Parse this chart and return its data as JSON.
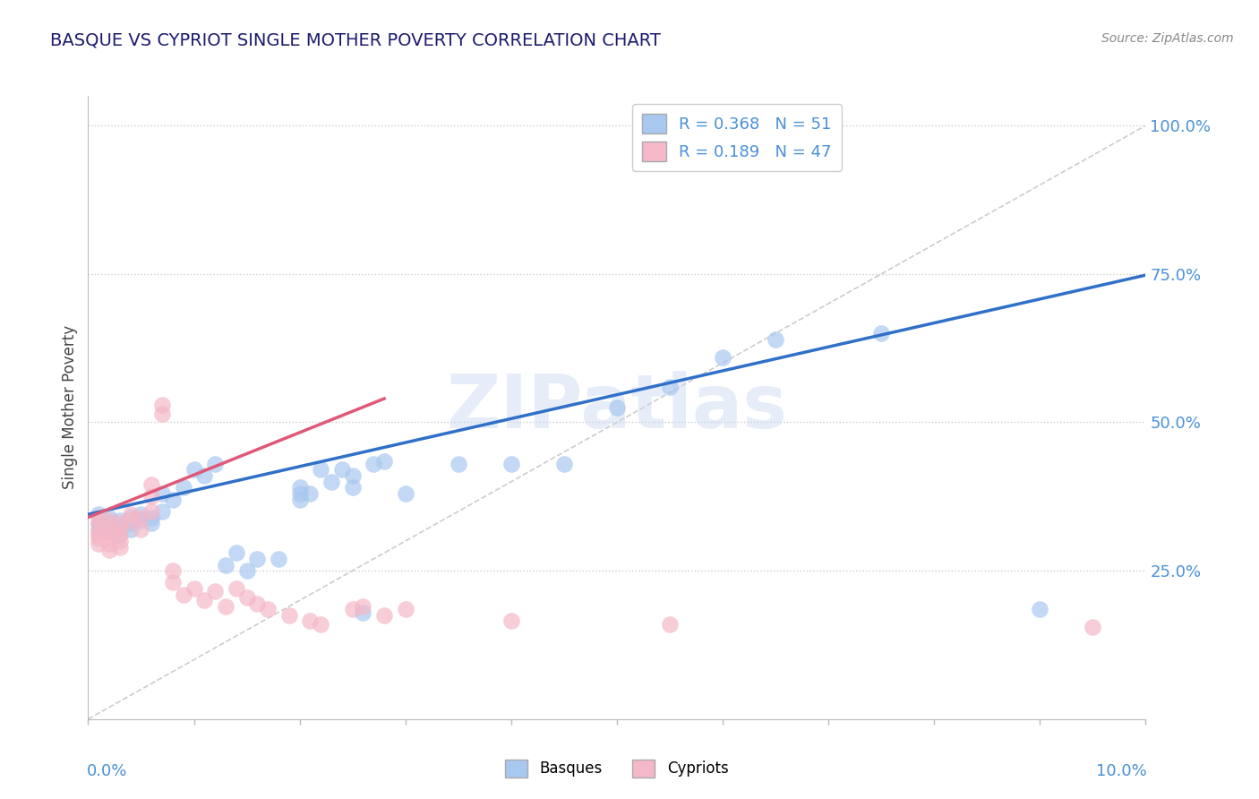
{
  "title": "BASQUE VS CYPRIOT SINGLE MOTHER POVERTY CORRELATION CHART",
  "source": "Source: ZipAtlas.com",
  "ylabel": "Single Mother Poverty",
  "legend_blue": {
    "R": "0.368",
    "N": "51"
  },
  "legend_pink": {
    "R": "0.189",
    "N": "47"
  },
  "legend_labels": [
    "Basques",
    "Cypriots"
  ],
  "watermark": "ZIPatlas",
  "blue_color": "#a8c8f0",
  "pink_color": "#f4b8c8",
  "blue_line_color": "#3070c8",
  "pink_line_color": "#e05878",
  "title_color": "#1a1a6e",
  "axis_label_color": "#4a90d9",
  "diagonal_color": "#c0c0c0",
  "blue_scatter": [
    [
      0.001,
      0.345
    ],
    [
      0.001,
      0.33
    ],
    [
      0.001,
      0.32
    ],
    [
      0.002,
      0.34
    ],
    [
      0.002,
      0.33
    ],
    [
      0.002,
      0.325
    ],
    [
      0.002,
      0.315
    ],
    [
      0.003,
      0.335
    ],
    [
      0.003,
      0.325
    ],
    [
      0.003,
      0.31
    ],
    [
      0.004,
      0.34
    ],
    [
      0.004,
      0.33
    ],
    [
      0.004,
      0.32
    ],
    [
      0.005,
      0.345
    ],
    [
      0.005,
      0.335
    ],
    [
      0.006,
      0.34
    ],
    [
      0.006,
      0.33
    ],
    [
      0.007,
      0.35
    ],
    [
      0.007,
      0.38
    ],
    [
      0.008,
      0.37
    ],
    [
      0.009,
      0.39
    ],
    [
      0.01,
      0.42
    ],
    [
      0.011,
      0.41
    ],
    [
      0.012,
      0.43
    ],
    [
      0.013,
      0.26
    ],
    [
      0.014,
      0.28
    ],
    [
      0.015,
      0.25
    ],
    [
      0.016,
      0.27
    ],
    [
      0.018,
      0.27
    ],
    [
      0.02,
      0.39
    ],
    [
      0.02,
      0.38
    ],
    [
      0.02,
      0.37
    ],
    [
      0.021,
      0.38
    ],
    [
      0.022,
      0.42
    ],
    [
      0.023,
      0.4
    ],
    [
      0.024,
      0.42
    ],
    [
      0.025,
      0.41
    ],
    [
      0.025,
      0.39
    ],
    [
      0.026,
      0.18
    ],
    [
      0.027,
      0.43
    ],
    [
      0.028,
      0.435
    ],
    [
      0.03,
      0.38
    ],
    [
      0.035,
      0.43
    ],
    [
      0.04,
      0.43
    ],
    [
      0.045,
      0.43
    ],
    [
      0.05,
      0.525
    ],
    [
      0.055,
      0.56
    ],
    [
      0.06,
      0.61
    ],
    [
      0.065,
      0.64
    ],
    [
      0.075,
      0.65
    ],
    [
      0.09,
      0.185
    ]
  ],
  "pink_scatter": [
    [
      0.001,
      0.34
    ],
    [
      0.001,
      0.33
    ],
    [
      0.001,
      0.315
    ],
    [
      0.001,
      0.31
    ],
    [
      0.001,
      0.305
    ],
    [
      0.001,
      0.295
    ],
    [
      0.002,
      0.335
    ],
    [
      0.002,
      0.325
    ],
    [
      0.002,
      0.315
    ],
    [
      0.002,
      0.305
    ],
    [
      0.002,
      0.295
    ],
    [
      0.002,
      0.285
    ],
    [
      0.003,
      0.33
    ],
    [
      0.003,
      0.32
    ],
    [
      0.003,
      0.31
    ],
    [
      0.003,
      0.3
    ],
    [
      0.003,
      0.29
    ],
    [
      0.004,
      0.345
    ],
    [
      0.004,
      0.335
    ],
    [
      0.005,
      0.34
    ],
    [
      0.005,
      0.32
    ],
    [
      0.006,
      0.35
    ],
    [
      0.006,
      0.395
    ],
    [
      0.006,
      0.375
    ],
    [
      0.007,
      0.53
    ],
    [
      0.007,
      0.515
    ],
    [
      0.008,
      0.25
    ],
    [
      0.008,
      0.23
    ],
    [
      0.009,
      0.21
    ],
    [
      0.01,
      0.22
    ],
    [
      0.011,
      0.2
    ],
    [
      0.012,
      0.215
    ],
    [
      0.013,
      0.19
    ],
    [
      0.014,
      0.22
    ],
    [
      0.015,
      0.205
    ],
    [
      0.016,
      0.195
    ],
    [
      0.017,
      0.185
    ],
    [
      0.019,
      0.175
    ],
    [
      0.021,
      0.165
    ],
    [
      0.022,
      0.16
    ],
    [
      0.025,
      0.185
    ],
    [
      0.026,
      0.19
    ],
    [
      0.028,
      0.175
    ],
    [
      0.03,
      0.185
    ],
    [
      0.04,
      0.165
    ],
    [
      0.055,
      0.16
    ],
    [
      0.095,
      0.155
    ]
  ],
  "xlim": [
    0.0,
    0.1
  ],
  "ylim": [
    0.0,
    1.05
  ],
  "ytick_vals": [
    0.25,
    0.5,
    0.75,
    1.0
  ],
  "ytick_labels": [
    "25.0%",
    "50.0%",
    "75.0%",
    "100.0%"
  ],
  "blue_line_x": [
    0.0,
    0.1
  ],
  "blue_line_y": [
    0.345,
    0.748
  ],
  "pink_line_x": [
    0.0,
    0.028
  ],
  "pink_line_y": [
    0.34,
    0.54
  ]
}
